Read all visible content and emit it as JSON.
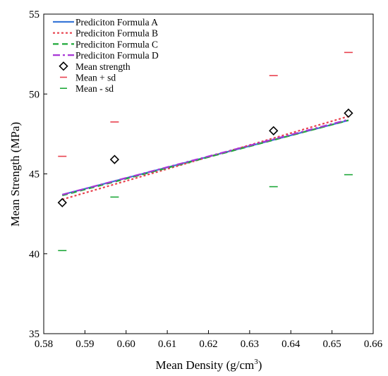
{
  "chart_data": {
    "type": "line",
    "title": "",
    "xlabel": "Mean Density (g/cm",
    "xlabel_sup": "3",
    "xlabel_suffix": ")",
    "ylabel": "Mean Strength (MPa)",
    "xlim": [
      0.58,
      0.66
    ],
    "ylim": [
      35,
      55
    ],
    "x_ticks": [
      0.58,
      0.59,
      0.6,
      0.61,
      0.62,
      0.63,
      0.64,
      0.65,
      0.66
    ],
    "x_tick_labels": [
      "0.58",
      "0.59",
      "0.60",
      "0.61",
      "0.62",
      "0.63",
      "0.64",
      "0.65",
      "0.66"
    ],
    "y_ticks": [
      35,
      40,
      45,
      50,
      55
    ],
    "y_tick_labels": [
      "35",
      "40",
      "45",
      "50",
      "55"
    ],
    "grid": false,
    "legend_position": "top-left",
    "x": [
      0.5845,
      0.5972,
      0.6358,
      0.654
    ],
    "series": [
      {
        "name": "Prediciton Formula A",
        "kind": "line",
        "style": "solid",
        "color": "#3a78d8",
        "x": [
          0.5845,
          0.654
        ],
        "values": [
          43.7,
          48.35
        ]
      },
      {
        "name": "Prediciton Formula B",
        "kind": "line",
        "style": "dotted",
        "color": "#e8414e",
        "x": [
          0.5845,
          0.654
        ],
        "values": [
          43.4,
          48.6
        ]
      },
      {
        "name": "Prediciton Formula C",
        "kind": "line",
        "style": "dashed",
        "color": "#1fa83a",
        "x": [
          0.5845,
          0.654
        ],
        "values": [
          43.65,
          48.35
        ]
      },
      {
        "name": "Prediciton Formula D",
        "kind": "line",
        "style": "dashdot",
        "color": "#a836d6",
        "x": [
          0.5845,
          0.654
        ],
        "values": [
          43.7,
          48.4
        ]
      },
      {
        "name": "Mean strength",
        "kind": "marker",
        "marker": "diamond",
        "color": "#000000",
        "x": [
          0.5845,
          0.5972,
          0.6358,
          0.654
        ],
        "values": [
          43.2,
          45.9,
          47.7,
          48.8
        ]
      },
      {
        "name": "Mean + sd",
        "kind": "marker",
        "marker": "hline",
        "color": "#e8414e",
        "x": [
          0.5845,
          0.5972,
          0.6358,
          0.654
        ],
        "values": [
          46.1,
          48.25,
          51.15,
          52.6
        ]
      },
      {
        "name": "Mean - sd",
        "kind": "marker",
        "marker": "hline",
        "color": "#1fa83a",
        "x": [
          0.5845,
          0.5972,
          0.6358,
          0.654
        ],
        "values": [
          40.2,
          43.55,
          44.2,
          44.95
        ]
      }
    ]
  }
}
